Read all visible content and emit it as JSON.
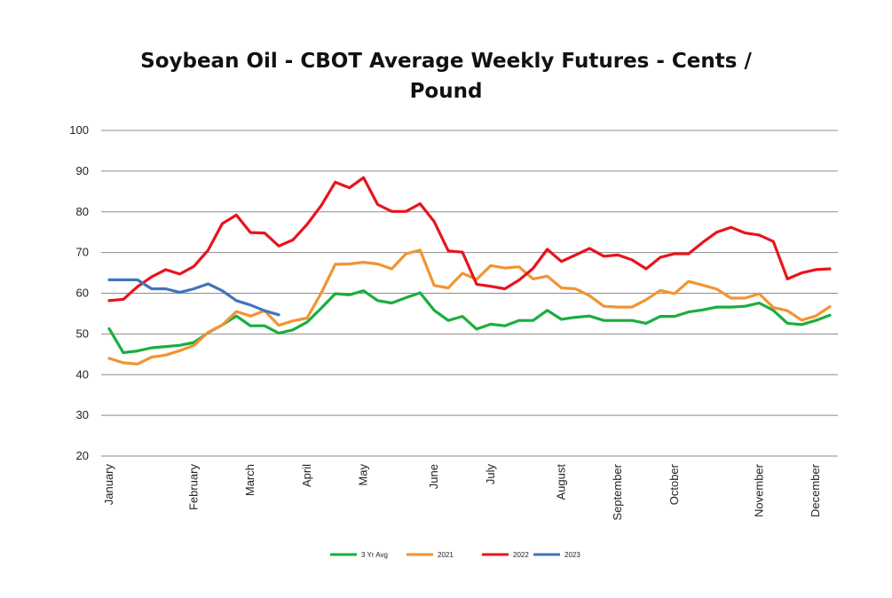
{
  "chart_data": {
    "type": "line",
    "title_line1": "Soybean Oil - CBOT Average Weekly Futures - Cents /",
    "title_line2": "Pound",
    "xlabel": "",
    "ylabel": "",
    "ylim": [
      20,
      100
    ],
    "y_ticks": [
      20,
      30,
      40,
      50,
      60,
      70,
      80,
      90,
      100
    ],
    "month_labels": [
      "January",
      "February",
      "March",
      "April",
      "May",
      "June",
      "July",
      "August",
      "September",
      "October",
      "November",
      "December"
    ],
    "month_label_week": [
      1,
      7,
      11,
      15,
      19,
      24,
      28,
      33,
      37,
      41,
      47,
      51
    ],
    "grid": true,
    "legend_position": "bottom",
    "series": [
      {
        "name": "3 Yr Avg",
        "color": "#1aae3e",
        "values": [
          51.3,
          45.4,
          45.8,
          46.6,
          46.9,
          47.2,
          47.9,
          50.3,
          52.2,
          54.4,
          52.0,
          52.0,
          50.2,
          51.0,
          52.9,
          56.3,
          59.9,
          59.6,
          60.6,
          58.2,
          57.6,
          58.9,
          60.1,
          55.8,
          53.3,
          54.3,
          51.2,
          52.4,
          52.0,
          53.3,
          53.3,
          55.8,
          53.6,
          54.1,
          54.4,
          53.3,
          53.3,
          53.3,
          52.6,
          54.3,
          54.3,
          55.4,
          55.9,
          56.6,
          56.6,
          56.8,
          57.6,
          55.8,
          52.6,
          52.3,
          53.3,
          54.6
        ]
      },
      {
        "name": "2021",
        "color": "#f39332",
        "values": [
          44.0,
          42.9,
          42.6,
          44.3,
          44.8,
          45.9,
          47.2,
          50.4,
          52.2,
          55.5,
          54.4,
          55.7,
          52.1,
          53.2,
          53.9,
          60.0,
          67.1,
          67.2,
          67.6,
          67.2,
          66.0,
          69.7,
          70.6,
          61.9,
          61.3,
          64.9,
          63.4,
          66.8,
          66.2,
          66.5,
          63.5,
          64.2,
          61.3,
          61.1,
          59.4,
          56.8,
          56.6,
          56.6,
          58.4,
          60.7,
          59.9,
          62.9,
          62.0,
          61.0,
          58.8,
          58.8,
          59.9,
          56.5,
          55.7,
          53.4,
          54.4,
          56.7
        ]
      },
      {
        "name": "2022",
        "color": "#e8141c",
        "values": [
          58.2,
          58.5,
          61.6,
          64.0,
          65.8,
          64.7,
          66.6,
          70.6,
          77.1,
          79.2,
          74.9,
          74.8,
          71.6,
          73.1,
          76.9,
          81.5,
          87.3,
          85.9,
          88.4,
          81.8,
          80.1,
          80.1,
          82.0,
          77.6,
          70.4,
          70.1,
          62.2,
          61.7,
          61.1,
          63.2,
          66.1,
          70.8,
          67.8,
          69.4,
          71.0,
          69.1,
          69.4,
          68.2,
          66.0,
          68.8,
          69.7,
          69.7,
          72.5,
          75.0,
          76.2,
          74.8,
          74.3,
          72.7,
          63.5,
          65.0,
          65.8,
          66.0
        ]
      },
      {
        "name": "2023",
        "color": "#4273bb",
        "values": [
          63.3,
          63.3,
          63.3,
          61.1,
          61.1,
          60.2,
          61.1,
          62.3,
          60.6,
          58.2,
          57.1,
          55.7,
          54.7
        ]
      }
    ]
  }
}
